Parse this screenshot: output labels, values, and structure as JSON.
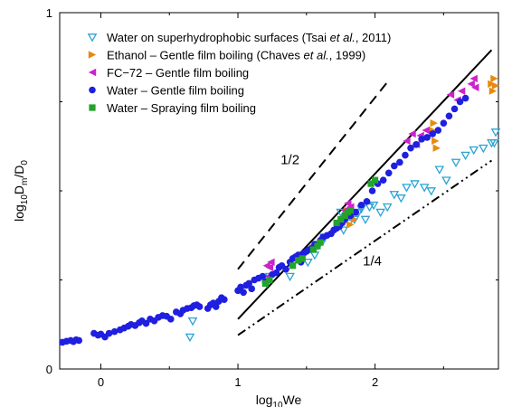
{
  "chart_data": {
    "type": "scatter",
    "title": "",
    "xlabel": {
      "base": "log",
      "sub": "10",
      "tail": "We"
    },
    "ylabel": {
      "base": "log",
      "sub": "10",
      "mid": "D",
      "sub2": "m",
      "mid2": "/D",
      "sub3": "0"
    },
    "xlim": [
      -0.3,
      2.9
    ],
    "ylim": [
      0,
      1
    ],
    "x_ticks": [
      "0",
      "1",
      "2"
    ],
    "y_ticks": [
      "0",
      "1"
    ],
    "legend_position": "top-left",
    "legend": [
      {
        "pre": "Water on superhydrophobic surfaces (Tsai ",
        "ital": "et al.",
        "post": ", 2011)",
        "marker": "triangle-down-open",
        "color": "#2aa3d4"
      },
      {
        "pre": "Ethanol – Gentle film boiling (Chaves ",
        "ital": "et al.",
        "post": ", 1999)",
        "marker": "triangle-right",
        "color": "#e88a10"
      },
      {
        "pre": "FC−72 – Gentle film boiling",
        "ital": "",
        "post": "",
        "marker": "triangle-left",
        "color": "#cc22cc"
      },
      {
        "pre": "Water – Gentle film boiling",
        "ital": "",
        "post": "",
        "marker": "circle",
        "color": "#1f1fe0"
      },
      {
        "pre": "Water – Spraying film boiling",
        "ital": "",
        "post": "",
        "marker": "square",
        "color": "#22a32a"
      }
    ],
    "slope_labels": [
      {
        "text": "1/2",
        "x": 1.38,
        "y": 0.575
      },
      {
        "text": "1/4",
        "x": 1.98,
        "y": 0.29
      }
    ],
    "lines": [
      {
        "name": "fit",
        "style": "solid",
        "points": [
          [
            1.0,
            0.14
          ],
          [
            2.85,
            0.895
          ]
        ]
      },
      {
        "name": "slope-1/2",
        "style": "dashed",
        "points": [
          [
            1.0,
            0.28
          ],
          [
            2.1,
            0.81
          ]
        ]
      },
      {
        "name": "slope-1/4",
        "style": "dashdot",
        "points": [
          [
            1.0,
            0.095
          ],
          [
            2.85,
            0.585
          ]
        ]
      }
    ],
    "series": [
      {
        "name": "Water on superhydrophobic surfaces (Tsai et al., 2011)",
        "marker": "triangle-down-open",
        "color": "#2aa3d4",
        "x": [
          0.67,
          0.65,
          1.21,
          1.23,
          1.38,
          1.51,
          1.56,
          1.63,
          1.77,
          1.81,
          1.83,
          1.85,
          1.88,
          1.9,
          1.93,
          1.96,
          1.99,
          2.04,
          2.09,
          2.14,
          2.19,
          2.23,
          2.29,
          2.36,
          2.41,
          2.47,
          2.52,
          2.59,
          2.66,
          2.72,
          2.79,
          2.85,
          2.88,
          2.87,
          1.75,
          1.62
        ],
        "y": [
          0.135,
          0.09,
          0.24,
          0.26,
          0.26,
          0.3,
          0.32,
          0.37,
          0.39,
          0.41,
          0.43,
          0.42,
          0.44,
          0.45,
          0.42,
          0.455,
          0.46,
          0.44,
          0.455,
          0.49,
          0.48,
          0.51,
          0.52,
          0.51,
          0.5,
          0.56,
          0.53,
          0.58,
          0.6,
          0.615,
          0.62,
          0.635,
          0.665,
          0.635,
          0.44,
          0.36
        ]
      },
      {
        "name": "Ethanol – Gentle film boiling (Chaves et al., 1999)",
        "marker": "triangle-right",
        "color": "#e88a10",
        "x": [
          1.83,
          1.8,
          1.82,
          1.85,
          2.42,
          2.44,
          2.45,
          2.43,
          2.86,
          2.88,
          2.87,
          2.85
        ],
        "y": [
          0.43,
          0.445,
          0.405,
          0.42,
          0.67,
          0.64,
          0.62,
          0.69,
          0.78,
          0.795,
          0.815,
          0.8
        ]
      },
      {
        "name": "FC−72 – Gentle film boiling",
        "marker": "triangle-left",
        "color": "#cc22cc",
        "x": [
          1.22,
          1.23,
          1.24,
          1.21,
          1.78,
          1.79,
          1.8,
          1.82,
          2.23,
          2.27,
          2.3,
          2.33,
          2.37,
          2.55,
          2.6,
          2.63,
          2.7,
          2.73,
          2.72
        ],
        "y": [
          0.26,
          0.285,
          0.3,
          0.29,
          0.445,
          0.43,
          0.465,
          0.455,
          0.64,
          0.66,
          0.63,
          0.655,
          0.67,
          0.77,
          0.755,
          0.78,
          0.8,
          0.79,
          0.815
        ]
      },
      {
        "name": "Water – Gentle film boiling",
        "marker": "circle",
        "color": "#1f1fe0",
        "x": [
          -0.28,
          -0.25,
          -0.22,
          -0.2,
          -0.18,
          -0.16,
          -0.05,
          -0.02,
          0.0,
          0.03,
          0.06,
          0.1,
          0.14,
          0.17,
          0.2,
          0.22,
          0.25,
          0.28,
          0.3,
          0.33,
          0.36,
          0.39,
          0.42,
          0.45,
          0.48,
          0.51,
          0.55,
          0.58,
          0.6,
          0.63,
          0.66,
          0.68,
          0.7,
          0.72,
          0.78,
          0.8,
          0.82,
          0.84,
          0.86,
          0.88,
          0.9,
          1.0,
          1.02,
          1.04,
          1.06,
          1.08,
          1.1,
          1.12,
          1.15,
          1.18,
          1.2,
          1.25,
          1.28,
          1.3,
          1.32,
          1.35,
          1.38,
          1.4,
          1.42,
          1.44,
          1.46,
          1.48,
          1.5,
          1.52,
          1.54,
          1.56,
          1.58,
          1.6,
          1.62,
          1.65,
          1.68,
          1.7,
          1.72,
          1.74,
          1.76,
          1.78,
          1.82,
          1.86,
          1.9,
          1.94,
          1.98,
          2.02,
          2.06,
          2.1,
          2.14,
          2.18,
          2.22,
          2.26,
          2.3,
          2.34,
          2.38,
          2.42,
          2.46,
          2.5,
          2.54,
          2.58,
          2.62,
          2.66
        ],
        "y": [
          0.075,
          0.078,
          0.08,
          0.077,
          0.082,
          0.08,
          0.1,
          0.095,
          0.098,
          0.09,
          0.1,
          0.105,
          0.11,
          0.115,
          0.12,
          0.125,
          0.122,
          0.13,
          0.135,
          0.128,
          0.14,
          0.135,
          0.145,
          0.15,
          0.148,
          0.14,
          0.16,
          0.155,
          0.165,
          0.17,
          0.172,
          0.178,
          0.18,
          0.175,
          0.17,
          0.18,
          0.185,
          0.175,
          0.19,
          0.2,
          0.195,
          0.22,
          0.23,
          0.215,
          0.235,
          0.24,
          0.225,
          0.25,
          0.255,
          0.26,
          0.245,
          0.265,
          0.27,
          0.285,
          0.29,
          0.28,
          0.3,
          0.31,
          0.315,
          0.32,
          0.3,
          0.325,
          0.33,
          0.335,
          0.34,
          0.35,
          0.345,
          0.36,
          0.37,
          0.375,
          0.38,
          0.39,
          0.395,
          0.4,
          0.41,
          0.42,
          0.43,
          0.44,
          0.46,
          0.47,
          0.5,
          0.52,
          0.53,
          0.55,
          0.57,
          0.58,
          0.6,
          0.62,
          0.63,
          0.645,
          0.65,
          0.66,
          0.67,
          0.69,
          0.71,
          0.73,
          0.75,
          0.76
        ]
      },
      {
        "name": "Water – Spraying film boiling",
        "marker": "square",
        "color": "#22a32a",
        "x": [
          1.2,
          1.23,
          1.4,
          1.44,
          1.47,
          1.55,
          1.58,
          1.6,
          1.72,
          1.75,
          1.78,
          1.8,
          1.82,
          1.97,
          2.0
        ],
        "y": [
          0.24,
          0.25,
          0.29,
          0.305,
          0.31,
          0.335,
          0.345,
          0.355,
          0.41,
          0.42,
          0.43,
          0.44,
          0.445,
          0.52,
          0.53
        ]
      }
    ]
  }
}
